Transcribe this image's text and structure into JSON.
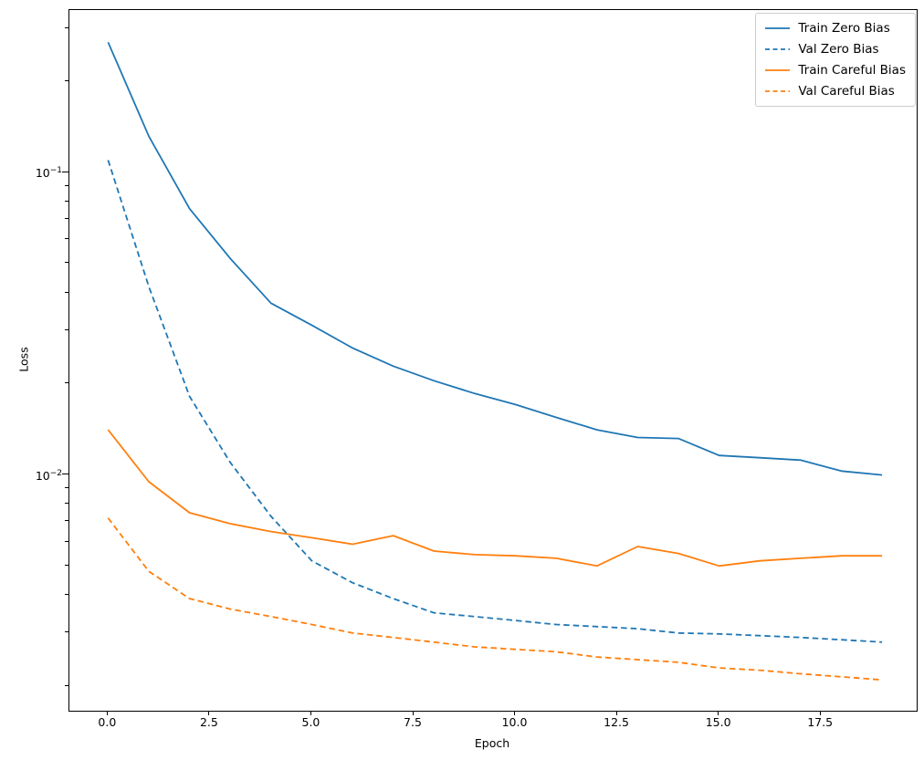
{
  "chart_data": {
    "type": "line",
    "title": "",
    "xlabel": "Epoch",
    "ylabel": "Loss",
    "yscale": "log",
    "grid": false,
    "legend_position": "upper right",
    "xlim": [
      -0.95,
      19.85
    ],
    "ylim": [
      0.00166,
      0.345
    ],
    "x": [
      0,
      1,
      2,
      3,
      4,
      5,
      6,
      7,
      8,
      9,
      10,
      11,
      12,
      13,
      14,
      15,
      16,
      17,
      18,
      19
    ],
    "x_ticks": [
      {
        "value": 0,
        "label": "0.0"
      },
      {
        "value": 2.5,
        "label": "2.5"
      },
      {
        "value": 5,
        "label": "5.0"
      },
      {
        "value": 7.5,
        "label": "7.5"
      },
      {
        "value": 10,
        "label": "10.0"
      },
      {
        "value": 12.5,
        "label": "12.5"
      },
      {
        "value": 15,
        "label": "15.0"
      },
      {
        "value": 17.5,
        "label": "17.5"
      }
    ],
    "y_ticks": [
      {
        "value": 0.1,
        "base": "10",
        "exp": "−1"
      },
      {
        "value": 0.01,
        "base": "10",
        "exp": "−2"
      }
    ],
    "y_minor_ticks": [
      0.002,
      0.003,
      0.004,
      0.005,
      0.006,
      0.007,
      0.008,
      0.009,
      0.02,
      0.03,
      0.04,
      0.05,
      0.06,
      0.07,
      0.08,
      0.09,
      0.2,
      0.3
    ],
    "series": [
      {
        "name": "Train Zero Bias",
        "color": "#1f77b4",
        "dash": "solid",
        "values": [
          0.27,
          0.132,
          0.076,
          0.052,
          0.037,
          0.0313,
          0.0263,
          0.0229,
          0.0205,
          0.0186,
          0.0171,
          0.0155,
          0.0141,
          0.0133,
          0.0132,
          0.0116,
          0.0114,
          0.0112,
          0.0103,
          0.01
        ]
      },
      {
        "name": "Val Zero Bias",
        "color": "#1f77b4",
        "dash": "dashed",
        "values": [
          0.11,
          0.042,
          0.0182,
          0.011,
          0.0073,
          0.0052,
          0.0044,
          0.0039,
          0.0035,
          0.0034,
          0.0033,
          0.0032,
          0.00315,
          0.0031,
          0.003,
          0.00298,
          0.00294,
          0.0029,
          0.00285,
          0.0028
        ]
      },
      {
        "name": "Train Careful Bias",
        "color": "#ff7f0e",
        "dash": "solid",
        "values": [
          0.0141,
          0.0095,
          0.0075,
          0.0069,
          0.0065,
          0.0062,
          0.0059,
          0.0063,
          0.0056,
          0.00545,
          0.0054,
          0.0053,
          0.005,
          0.0058,
          0.0055,
          0.005,
          0.0052,
          0.0053,
          0.0054,
          0.0054
        ]
      },
      {
        "name": "Val Careful Bias",
        "color": "#ff7f0e",
        "dash": "dashed",
        "values": [
          0.0072,
          0.0048,
          0.0039,
          0.0036,
          0.0034,
          0.0032,
          0.003,
          0.0029,
          0.0028,
          0.0027,
          0.00265,
          0.0026,
          0.0025,
          0.00245,
          0.0024,
          0.0023,
          0.00226,
          0.0022,
          0.00215,
          0.0021
        ]
      }
    ]
  }
}
